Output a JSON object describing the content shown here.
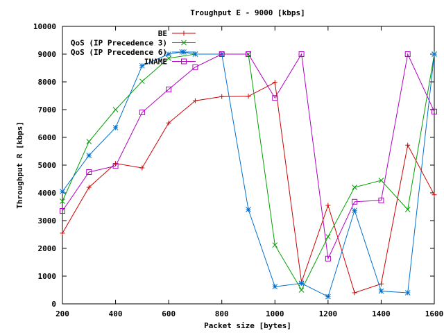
{
  "chart_data": {
    "type": "line",
    "title": "Troughput E - 9000 [kbps]",
    "xlabel": "Packet size [bytes]",
    "ylabel": "Throughput R [kbps]",
    "xlim": [
      200,
      1600
    ],
    "ylim": [
      0,
      10000
    ],
    "x_ticks": [
      200,
      400,
      600,
      800,
      1000,
      1200,
      1400,
      1600
    ],
    "y_ticks": [
      0,
      1000,
      2000,
      3000,
      4000,
      5000,
      6000,
      7000,
      8000,
      9000,
      10000
    ],
    "grid": false,
    "legend_position": "top-left",
    "series": [
      {
        "name": "BE",
        "color": "#cc0000",
        "marker": "plus",
        "points": [
          [
            200,
            2550
          ],
          [
            300,
            4200
          ],
          [
            400,
            5060
          ],
          [
            500,
            4900
          ],
          [
            600,
            6520
          ],
          [
            700,
            7320
          ],
          [
            800,
            7470
          ],
          [
            900,
            7480
          ],
          [
            1000,
            7980
          ],
          [
            1100,
            780
          ],
          [
            1200,
            3550
          ],
          [
            1300,
            400
          ],
          [
            1400,
            720
          ],
          [
            1500,
            5720
          ],
          [
            1600,
            3930
          ]
        ]
      },
      {
        "name": "QoS (IP Precedence 3)",
        "color": "#00a000",
        "marker": "x",
        "points": [
          [
            200,
            3700
          ],
          [
            300,
            5850
          ],
          [
            400,
            7000
          ],
          [
            500,
            8020
          ],
          [
            600,
            8850
          ],
          [
            700,
            9000
          ],
          [
            800,
            9000
          ],
          [
            900,
            9000
          ],
          [
            1000,
            2120
          ],
          [
            1100,
            500
          ],
          [
            1200,
            2420
          ],
          [
            1300,
            4200
          ],
          [
            1400,
            4450
          ],
          [
            1500,
            3400
          ],
          [
            1600,
            9000
          ]
        ]
      },
      {
        "name": "QoS (IP Precedence 6)",
        "color": "#0070d0",
        "marker": "star",
        "points": [
          [
            200,
            4050
          ],
          [
            300,
            5350
          ],
          [
            400,
            6350
          ],
          [
            500,
            8580
          ],
          [
            600,
            9000
          ],
          [
            650,
            9080
          ],
          [
            700,
            9000
          ],
          [
            800,
            9000
          ],
          [
            900,
            3400
          ],
          [
            1000,
            620
          ],
          [
            1100,
            740
          ],
          [
            1200,
            260
          ],
          [
            1300,
            3370
          ],
          [
            1400,
            460
          ],
          [
            1500,
            400
          ],
          [
            1600,
            9000
          ]
        ]
      },
      {
        "name": "INAME",
        "color": "#b000c0",
        "marker": "square",
        "points": [
          [
            200,
            3350
          ],
          [
            300,
            4750
          ],
          [
            400,
            4970
          ],
          [
            500,
            6900
          ],
          [
            600,
            7730
          ],
          [
            700,
            8530
          ],
          [
            800,
            9000
          ],
          [
            900,
            9000
          ],
          [
            1000,
            7420
          ],
          [
            1100,
            9000
          ],
          [
            1200,
            1630
          ],
          [
            1300,
            3680
          ],
          [
            1400,
            3730
          ],
          [
            1500,
            9000
          ],
          [
            1600,
            6930
          ]
        ]
      }
    ]
  }
}
